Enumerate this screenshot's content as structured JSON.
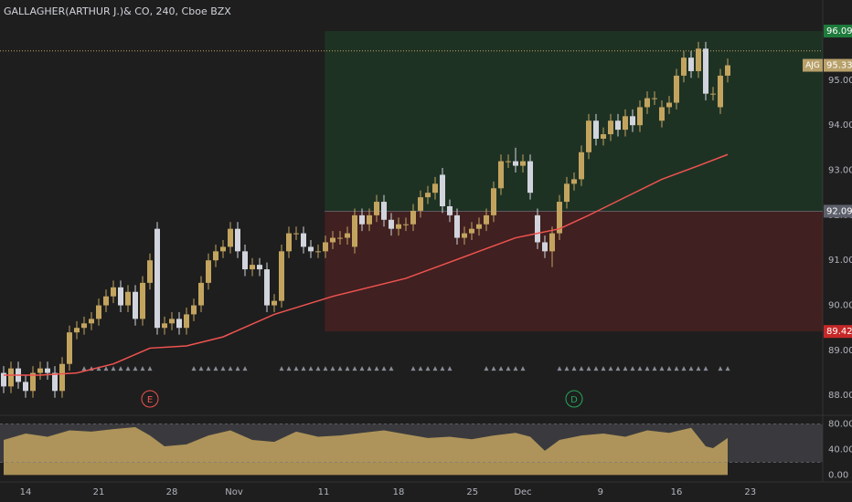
{
  "chart_data": {
    "type": "candlestick",
    "title": "GALLAGHER(ARTHUR J.)& CO, 240, Cboe BZX",
    "open": [
      88.5,
      88.2,
      88.6,
      88.3,
      88.1,
      88.5,
      88.6,
      88.5,
      88.1,
      88.7,
      89.4,
      89.5,
      89.6,
      89.7,
      90.0,
      90.2,
      90.4,
      90.0,
      90.3,
      89.7,
      90.5,
      91.7,
      89.5,
      89.6,
      89.7,
      89.5,
      89.8,
      90.0,
      90.5,
      91.0,
      91.2,
      91.3,
      91.7,
      91.2,
      90.8,
      90.9,
      90.8,
      90.0,
      90.1,
      91.2,
      91.6,
      91.6,
      91.3,
      91.2,
      91.2,
      91.4,
      91.5,
      91.5,
      91.3,
      92.0,
      91.8,
      92.0,
      92.3,
      91.9,
      91.7,
      91.8,
      91.8,
      92.1,
      92.4,
      92.5,
      92.9,
      92.2,
      92.0,
      91.5,
      91.6,
      91.7,
      91.8,
      92.0,
      92.6,
      93.2,
      93.2,
      93.1,
      93.2,
      92.0,
      91.4,
      91.2,
      91.6,
      92.3,
      92.7,
      92.8,
      93.4,
      94.1,
      93.7,
      93.8,
      94.1,
      93.9,
      94.2,
      94.0,
      94.4,
      94.6,
      94.1,
      94.4,
      94.5,
      95.1,
      95.5,
      95.2,
      95.7,
      94.7,
      94.4,
      95.1
    ],
    "high": [
      88.65,
      88.75,
      88.75,
      88.45,
      88.65,
      88.75,
      88.75,
      88.65,
      88.85,
      89.55,
      89.65,
      89.75,
      89.85,
      90.15,
      90.35,
      90.55,
      90.55,
      90.45,
      90.45,
      90.65,
      91.15,
      91.85,
      89.75,
      89.85,
      89.85,
      89.95,
      90.15,
      90.65,
      91.15,
      91.35,
      91.45,
      91.85,
      91.85,
      91.35,
      91.05,
      91.05,
      90.95,
      90.25,
      91.35,
      91.75,
      91.75,
      91.75,
      91.45,
      91.35,
      91.55,
      91.65,
      91.65,
      91.75,
      92.15,
      92.15,
      92.15,
      92.45,
      92.45,
      92.05,
      91.95,
      91.95,
      92.25,
      92.55,
      92.65,
      92.85,
      93.05,
      92.35,
      92.15,
      91.75,
      91.85,
      91.95,
      92.15,
      92.75,
      93.35,
      93.35,
      93.5,
      93.35,
      93.35,
      92.15,
      91.55,
      91.75,
      92.45,
      92.85,
      92.95,
      93.55,
      94.25,
      94.25,
      93.95,
      94.25,
      94.25,
      94.35,
      94.35,
      94.55,
      94.75,
      94.75,
      94.55,
      94.65,
      95.25,
      95.65,
      95.65,
      95.85,
      95.85,
      94.85,
      95.25,
      95.48
    ],
    "low": [
      88.05,
      88.05,
      88.15,
      87.95,
      87.95,
      88.35,
      88.35,
      87.95,
      87.95,
      88.55,
      89.25,
      89.35,
      89.45,
      89.55,
      89.85,
      90.05,
      89.85,
      89.85,
      89.55,
      89.55,
      90.35,
      89.35,
      89.35,
      89.45,
      89.35,
      89.35,
      89.65,
      89.85,
      90.35,
      90.85,
      91.05,
      91.15,
      91.05,
      90.65,
      90.65,
      90.65,
      89.85,
      89.85,
      89.95,
      91.05,
      91.45,
      91.15,
      91.05,
      91.05,
      91.05,
      91.25,
      91.35,
      91.35,
      91.15,
      91.65,
      91.65,
      91.85,
      91.75,
      91.55,
      91.55,
      91.65,
      91.65,
      91.95,
      92.25,
      92.35,
      92.05,
      91.85,
      91.35,
      91.35,
      91.45,
      91.55,
      91.65,
      91.85,
      92.45,
      93.05,
      92.95,
      92.95,
      92.35,
      91.25,
      91.05,
      90.85,
      91.45,
      92.15,
      92.55,
      92.65,
      93.25,
      93.55,
      93.55,
      93.65,
      93.75,
      93.75,
      93.85,
      93.85,
      94.25,
      94.45,
      93.95,
      94.25,
      94.35,
      94.95,
      95.05,
      95.05,
      94.55,
      94.55,
      94.25,
      94.95
    ],
    "close": [
      88.2,
      88.6,
      88.3,
      88.1,
      88.5,
      88.6,
      88.5,
      88.1,
      88.7,
      89.4,
      89.5,
      89.6,
      89.7,
      90.0,
      90.2,
      90.4,
      90.0,
      90.3,
      89.7,
      90.5,
      91.0,
      89.5,
      89.6,
      89.7,
      89.5,
      89.8,
      90.0,
      90.5,
      91.0,
      91.2,
      91.3,
      91.7,
      91.2,
      90.8,
      90.9,
      90.8,
      90.0,
      90.1,
      91.2,
      91.6,
      91.6,
      91.3,
      91.2,
      91.2,
      91.4,
      91.5,
      91.5,
      91.6,
      92.0,
      91.8,
      92.0,
      92.3,
      91.9,
      91.7,
      91.8,
      91.8,
      92.1,
      92.4,
      92.5,
      92.7,
      92.2,
      92.0,
      91.5,
      91.6,
      91.7,
      91.8,
      92.0,
      92.6,
      93.2,
      93.2,
      93.1,
      93.2,
      92.5,
      91.4,
      91.2,
      91.6,
      92.3,
      92.7,
      92.8,
      93.4,
      94.1,
      93.7,
      93.8,
      94.1,
      93.9,
      94.2,
      94.0,
      94.4,
      94.6,
      94.6,
      94.4,
      94.5,
      95.1,
      95.5,
      95.2,
      95.7,
      94.7,
      94.7,
      95.1,
      95.33
    ],
    "colors": {
      "up": "#c3a45f",
      "down": "#d1d4dc"
    },
    "xlim": [
      -0.5,
      112
    ],
    "xticks": [
      {
        "value": 3,
        "label": "14"
      },
      {
        "value": 13,
        "label": "21"
      },
      {
        "value": 23,
        "label": "28"
      },
      {
        "value": 31.5,
        "label": "Nov"
      },
      {
        "value": 43.75,
        "label": "11"
      },
      {
        "value": 54,
        "label": "18"
      },
      {
        "value": 64.1,
        "label": "25"
      },
      {
        "value": 71,
        "label": "Dec"
      },
      {
        "value": 81.6,
        "label": "9"
      },
      {
        "value": 92,
        "label": "16"
      },
      {
        "value": 102.1,
        "label": "23"
      }
    ],
    "ylim": [
      87.62,
      96.78
    ],
    "yticks": [
      {
        "value": 95,
        "label": "95.00"
      },
      {
        "value": 94,
        "label": "94.00"
      },
      {
        "value": 93,
        "label": "93.00"
      },
      {
        "value": 92,
        "label": "92.00"
      },
      {
        "value": 91,
        "label": "91.00"
      },
      {
        "value": 90,
        "label": "90.00"
      },
      {
        "value": 89,
        "label": "89.00"
      },
      {
        "value": 88,
        "label": "88.00"
      }
    ],
    "moving_average": {
      "x": [
        0,
        5,
        10,
        15,
        20,
        25,
        30,
        37,
        45,
        55,
        60,
        65,
        70,
        73,
        76,
        80,
        85,
        90,
        95,
        99
      ],
      "values": [
        88.45,
        88.45,
        88.5,
        88.7,
        89.05,
        89.1,
        89.3,
        89.8,
        90.2,
        90.6,
        90.9,
        91.2,
        91.5,
        91.6,
        91.7,
        92.0,
        92.4,
        92.8,
        93.1,
        93.35
      ],
      "color": "#f05350"
    },
    "zone": {
      "x_start": 43.9,
      "top": 96.09,
      "mid": 92.09,
      "bottom": 89.42,
      "top_color": "#1e7b3c",
      "mid_color": "#5d606b",
      "bottom_color": "#c62828"
    },
    "last": {
      "symbol": "AJG",
      "value": 95.33,
      "color": "#b8a06a"
    },
    "dotted_line": {
      "value": 95.65,
      "color": "#c3a45f"
    },
    "signals": {
      "ranges": [
        [
          11,
          20
        ],
        [
          26,
          33
        ],
        [
          38,
          53
        ],
        [
          56,
          61
        ],
        [
          66,
          71
        ],
        [
          76,
          96
        ],
        [
          98,
          99
        ]
      ],
      "y": 88.6,
      "color": "#878b94"
    },
    "events": [
      {
        "x": 20,
        "label": "E",
        "color": "#f05350"
      },
      {
        "x": 78,
        "label": "D",
        "color": "#26a65b"
      }
    ],
    "oscillator": {
      "x": [
        0,
        3,
        6,
        9,
        12,
        15,
        18,
        20,
        22,
        25,
        28,
        31,
        34,
        37,
        40,
        43,
        46,
        49,
        52,
        55,
        58,
        61,
        64,
        67,
        70,
        72,
        74,
        76,
        79,
        82,
        85,
        88,
        91,
        94,
        96,
        97,
        99
      ],
      "values": [
        55,
        65,
        60,
        70,
        68,
        72,
        75,
        62,
        45,
        48,
        62,
        70,
        55,
        52,
        68,
        60,
        62,
        66,
        70,
        64,
        58,
        60,
        56,
        62,
        66,
        60,
        38,
        55,
        62,
        65,
        60,
        70,
        66,
        74,
        45,
        42,
        58
      ],
      "color": "#c3a45f",
      "ylim": [
        -8.1,
        90.8
      ],
      "band": [
        20,
        80
      ],
      "yticks": [
        {
          "value": 80,
          "label": "80.00"
        },
        {
          "value": 40,
          "label": "40.00"
        },
        {
          "value": 0,
          "label": "0.00"
        }
      ]
    }
  }
}
